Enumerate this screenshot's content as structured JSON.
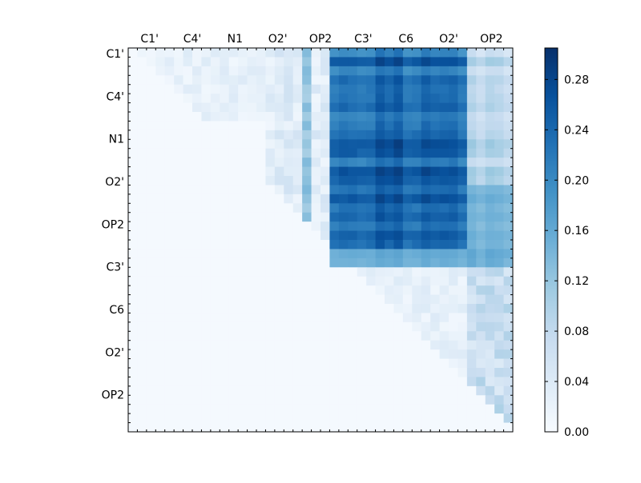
{
  "chart_data": {
    "type": "heatmap",
    "title": "",
    "xlabel": "",
    "ylabel": "",
    "x_tick_labels": [
      "C1'",
      "C4'",
      "N1",
      "O2'",
      "OP2",
      "C3'",
      "C6",
      "O2'",
      "OP2"
    ],
    "y_tick_labels": [
      "C1'",
      "C4'",
      "N1",
      "O2'",
      "OP2",
      "C3'",
      "C6",
      "O2'",
      "OP2"
    ],
    "x_axis_position": "top",
    "grid": false,
    "colormap": "Blues",
    "color_low": "#f7fbff",
    "color_high": "#08306b",
    "colorbar": {
      "placement": "right",
      "range": [
        0.0,
        0.305
      ],
      "tick_labels": [
        "0.00",
        "0.04",
        "0.08",
        "0.12",
        "0.16",
        "0.20",
        "0.24",
        "0.28"
      ]
    },
    "matrix": {
      "size": [
        42,
        42
      ],
      "fill": 0.005,
      "blocks": [
        {
          "rows": [
            0,
            24
          ],
          "cols": [
            22,
            37
          ],
          "range": [
            0.17,
            0.29
          ],
          "pattern": "bands"
        },
        {
          "rows": [
            0,
            24
          ],
          "cols": [
            37,
            42
          ],
          "range": [
            0.04,
            0.12
          ],
          "pattern": "bands"
        },
        {
          "rows": [
            0,
            24
          ],
          "cols": [
            15,
            22
          ],
          "range": [
            0.01,
            0.06
          ],
          "pattern": "upper"
        },
        {
          "rows": [
            0,
            24
          ],
          "cols": [
            19,
            20
          ],
          "range": [
            0.1,
            0.14
          ],
          "pattern": "upper"
        },
        {
          "rows": [
            0,
            8
          ],
          "cols": [
            1,
            15
          ],
          "range": [
            0.01,
            0.04
          ],
          "pattern": "upper"
        },
        {
          "rows": [
            15,
            24
          ],
          "cols": [
            37,
            42
          ],
          "range": [
            0.12,
            0.16
          ],
          "pattern": "bands"
        },
        {
          "rows": [
            22,
            24
          ],
          "cols": [
            22,
            42
          ],
          "range": [
            0.12,
            0.18
          ],
          "pattern": "bands"
        },
        {
          "rows": [
            24,
            42
          ],
          "cols": [
            24,
            37
          ],
          "range": [
            0.01,
            0.04
          ],
          "pattern": "upper"
        },
        {
          "rows": [
            24,
            42
          ],
          "cols": [
            37,
            42
          ],
          "range": [
            0.04,
            0.1
          ],
          "pattern": "upper"
        }
      ]
    }
  }
}
